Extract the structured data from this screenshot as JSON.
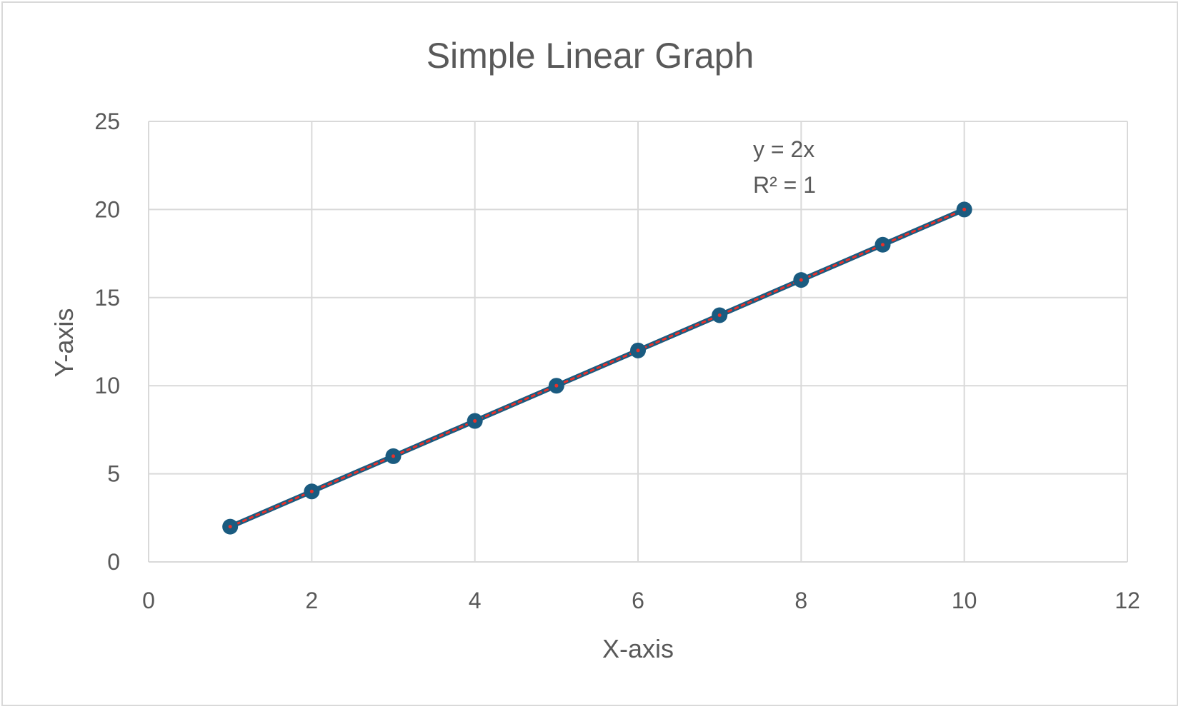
{
  "chart_data": {
    "type": "scatter",
    "title": "Simple Linear Graph",
    "xlabel": "X-axis",
    "ylabel": "Y-axis",
    "xlim": [
      0,
      12
    ],
    "ylim": [
      0,
      25
    ],
    "x_ticks": [
      0,
      2,
      4,
      6,
      8,
      10,
      12
    ],
    "y_ticks": [
      0,
      5,
      10,
      15,
      20,
      25
    ],
    "grid": true,
    "series": [
      {
        "x": [
          1,
          2,
          3,
          4,
          5,
          6,
          7,
          8,
          9,
          10
        ],
        "y": [
          2,
          4,
          6,
          8,
          10,
          12,
          14,
          16,
          18,
          20
        ],
        "line": true,
        "color": "#1a5b80"
      }
    ],
    "trendline": {
      "type": "linear",
      "color": "#e8312a",
      "style": "dotted",
      "equation": "y = 2x",
      "r_squared_label": "R² = 1"
    }
  }
}
